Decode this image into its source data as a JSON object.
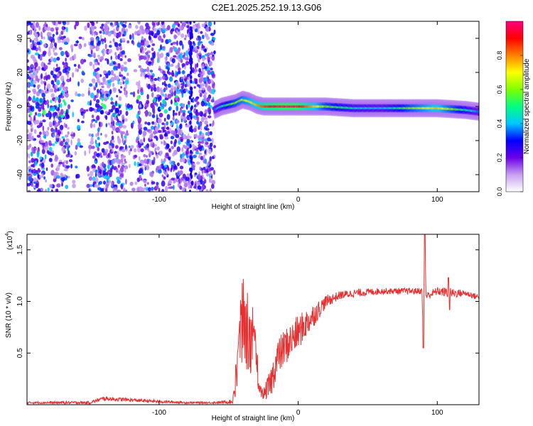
{
  "title": "C2E1.2025.252.19.13.G06",
  "chart_data": [
    {
      "type": "heatmap",
      "xlabel": "Height of straight line (km)",
      "ylabel": "Frequency (Hz)",
      "xlim": [
        -195,
        130
      ],
      "ylim": [
        -50,
        50
      ],
      "xticks": [
        -100,
        0,
        100
      ],
      "yticks": [
        -40,
        -20,
        0,
        20,
        40
      ],
      "colorbar": {
        "label": "Normalized spectral amplitude",
        "range": [
          0,
          1
        ],
        "ticks": [
          "0.0",
          "0.2",
          "0.4",
          "0.6",
          "0.8"
        ],
        "tick_values": [
          0.0,
          0.2,
          0.4,
          0.6,
          0.8
        ],
        "stops": [
          "#ffffff",
          "#c8a0f0",
          "#6a00e8",
          "#0000ff",
          "#00c8ff",
          "#00ff80",
          "#80ff00",
          "#ffff00",
          "#ff8000",
          "#ff0000",
          "#ff0080"
        ]
      },
      "noise_region_km": [
        -195,
        -60
      ],
      "tone_track": {
        "x": [
          -60,
          -55,
          -50,
          -45,
          -40,
          -35,
          -30,
          -25,
          -20,
          -10,
          0,
          20,
          40,
          60,
          80,
          100,
          120,
          130
        ],
        "freq": [
          -2,
          0,
          1,
          2,
          4,
          3,
          1,
          0,
          0,
          0,
          0,
          0,
          -1,
          -1,
          -1,
          -1,
          -2,
          -3
        ],
        "amp": [
          0.35,
          0.45,
          0.55,
          0.6,
          0.65,
          0.7,
          0.75,
          0.85,
          0.9,
          0.95,
          0.95,
          0.6,
          0.45,
          0.4,
          0.6,
          0.75,
          0.5,
          0.35
        ]
      }
    },
    {
      "type": "line",
      "ylabel": "SNR (10 * v/v)",
      "yscale_note": "(x10^4)",
      "yscale_base": "(x10",
      "yscale_exp": "4",
      "xlabel": "Height of straight line (km)",
      "xlim": [
        -195,
        130
      ],
      "ylim": [
        0.0,
        1.65
      ],
      "xticks": [
        -100,
        0,
        100
      ],
      "yticks": [
        "0.5",
        "1.0",
        "1.5"
      ],
      "ytick_values": [
        0.5,
        1.0,
        1.5
      ],
      "color": "#e83030",
      "series_envelope": {
        "x": [
          -195,
          -150,
          -140,
          -100,
          -80,
          -60,
          -47,
          -45,
          -40,
          -35,
          -30,
          -28,
          -25,
          -20,
          -15,
          -10,
          0,
          10,
          20,
          30,
          40,
          60,
          80,
          89,
          90,
          91,
          92,
          100,
          110,
          120,
          130
        ],
        "y": [
          0.02,
          0.02,
          0.06,
          0.03,
          0.02,
          0.02,
          0.03,
          0.2,
          0.75,
          0.6,
          0.45,
          0.15,
          0.1,
          0.2,
          0.45,
          0.55,
          0.7,
          0.85,
          1.0,
          1.06,
          1.08,
          1.1,
          1.1,
          1.1,
          0.6,
          1.65,
          1.05,
          1.1,
          1.08,
          1.08,
          1.04
        ],
        "noise": [
          0.01,
          0.015,
          0.02,
          0.015,
          0.01,
          0.01,
          0.02,
          0.2,
          0.35,
          0.3,
          0.25,
          0.05,
          0.05,
          0.15,
          0.18,
          0.18,
          0.17,
          0.12,
          0.06,
          0.04,
          0.04,
          0.03,
          0.03,
          0.03,
          0.0,
          0.0,
          0.04,
          0.04,
          0.05,
          0.03,
          0.03
        ]
      }
    }
  ]
}
